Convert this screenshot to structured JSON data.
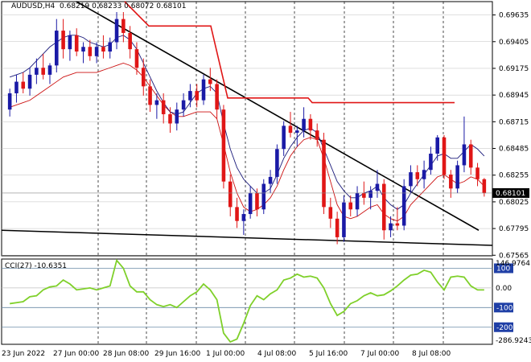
{
  "header": {
    "symbol_tf": "AUDUSD,H4",
    "ohlc": "0.68219 0.68233 0.68072 0.68101"
  },
  "price_axis": {
    "labels": [
      "0.69635",
      "0.69405",
      "0.69175",
      "0.68945",
      "0.68715",
      "0.68485",
      "0.68255",
      "0.68025",
      "0.67795",
      "0.67565"
    ],
    "current_price": "0.68101"
  },
  "time_axis": {
    "labels": [
      "23 Jun 2022",
      "27 Jun 00:00",
      "28 Jun 08:00",
      "29 Jun 16:00",
      "1 Jul 00:00",
      "4 Jul 08:00",
      "5 Jul 16:00",
      "7 Jul 00:00",
      "8 Jul 08:00"
    ]
  },
  "indicator": {
    "label": "CCI(27) -10.6351",
    "scale_labels": [
      "146.9764",
      "0.00",
      "-286.9243"
    ],
    "levels": [
      "100",
      "-100",
      "-200"
    ]
  },
  "colors": {
    "bull": "#1a1aa6",
    "bear": "#e01616",
    "ma_fast": "#1a1a7a",
    "ma_slow": "#cc1111",
    "resistance": "#e01616",
    "trendline": "#000000",
    "cci": "#7fd02a",
    "level_box": "#1f3fa6",
    "grid": "#bfbfbf"
  },
  "chart_data": {
    "type": "candlestick",
    "price_range": [
      0.6756,
      0.6975
    ],
    "candles": [
      [
        0.6882,
        0.69,
        0.6876,
        0.6896
      ],
      [
        0.6896,
        0.6912,
        0.6888,
        0.6906
      ],
      [
        0.6906,
        0.6914,
        0.6896,
        0.69
      ],
      [
        0.69,
        0.6918,
        0.6894,
        0.6912
      ],
      [
        0.6912,
        0.6926,
        0.6904,
        0.6918
      ],
      [
        0.6918,
        0.693,
        0.6908,
        0.6912
      ],
      [
        0.6912,
        0.6922,
        0.6904,
        0.692
      ],
      [
        0.692,
        0.696,
        0.6914,
        0.695
      ],
      [
        0.695,
        0.696,
        0.6926,
        0.6934
      ],
      [
        0.6934,
        0.695,
        0.6924,
        0.6946
      ],
      [
        0.6946,
        0.6952,
        0.6928,
        0.6932
      ],
      [
        0.6932,
        0.694,
        0.6922,
        0.6936
      ],
      [
        0.6936,
        0.6942,
        0.6924,
        0.6928
      ],
      [
        0.6928,
        0.694,
        0.6922,
        0.6936
      ],
      [
        0.6936,
        0.6946,
        0.6926,
        0.6932
      ],
      [
        0.6932,
        0.6944,
        0.6926,
        0.694
      ],
      [
        0.694,
        0.6966,
        0.6934,
        0.696
      ],
      [
        0.696,
        0.6966,
        0.694,
        0.6948
      ],
      [
        0.6948,
        0.6954,
        0.6926,
        0.6934
      ],
      [
        0.6934,
        0.694,
        0.6912,
        0.6918
      ],
      [
        0.6918,
        0.6926,
        0.6894,
        0.6902
      ],
      [
        0.6902,
        0.6908,
        0.688,
        0.6886
      ],
      [
        0.6886,
        0.6896,
        0.6874,
        0.689
      ],
      [
        0.689,
        0.6896,
        0.687,
        0.6878
      ],
      [
        0.6878,
        0.6884,
        0.6862,
        0.687
      ],
      [
        0.687,
        0.6888,
        0.6864,
        0.6882
      ],
      [
        0.6882,
        0.6896,
        0.6876,
        0.689
      ],
      [
        0.689,
        0.6904,
        0.6884,
        0.6898
      ],
      [
        0.6898,
        0.6904,
        0.6884,
        0.689
      ],
      [
        0.689,
        0.6912,
        0.6886,
        0.6908
      ],
      [
        0.6908,
        0.6918,
        0.6898,
        0.6904
      ],
      [
        0.6904,
        0.6908,
        0.6874,
        0.6882
      ],
      [
        0.6882,
        0.6886,
        0.6814,
        0.682
      ],
      [
        0.682,
        0.6826,
        0.679,
        0.6798
      ],
      [
        0.6798,
        0.6806,
        0.678,
        0.6786
      ],
      [
        0.6786,
        0.6796,
        0.6774,
        0.6792
      ],
      [
        0.6792,
        0.6816,
        0.6788,
        0.681
      ],
      [
        0.681,
        0.6814,
        0.679,
        0.6796
      ],
      [
        0.6796,
        0.6822,
        0.6792,
        0.6818
      ],
      [
        0.6818,
        0.683,
        0.681,
        0.6824
      ],
      [
        0.6824,
        0.6852,
        0.6818,
        0.6848
      ],
      [
        0.6848,
        0.6872,
        0.6842,
        0.6868
      ],
      [
        0.6868,
        0.688,
        0.6858,
        0.6862
      ],
      [
        0.6862,
        0.6868,
        0.685,
        0.6864
      ],
      [
        0.6864,
        0.6884,
        0.6858,
        0.6874
      ],
      [
        0.6874,
        0.6878,
        0.6856,
        0.6864
      ],
      [
        0.6864,
        0.687,
        0.685,
        0.6856
      ],
      [
        0.6856,
        0.6862,
        0.6792,
        0.6798
      ],
      [
        0.6798,
        0.6806,
        0.678,
        0.6788
      ],
      [
        0.6788,
        0.6794,
        0.6766,
        0.6772
      ],
      [
        0.6772,
        0.6808,
        0.6768,
        0.6802
      ],
      [
        0.6802,
        0.6808,
        0.679,
        0.6796
      ],
      [
        0.6796,
        0.6816,
        0.679,
        0.681
      ],
      [
        0.681,
        0.682,
        0.68,
        0.6806
      ],
      [
        0.6806,
        0.6816,
        0.6796,
        0.6812
      ],
      [
        0.6812,
        0.683,
        0.6806,
        0.6818
      ],
      [
        0.6818,
        0.6822,
        0.677,
        0.6778
      ],
      [
        0.6778,
        0.679,
        0.6772,
        0.6784
      ],
      [
        0.6784,
        0.6798,
        0.6778,
        0.6782
      ],
      [
        0.6782,
        0.6822,
        0.6778,
        0.6816
      ],
      [
        0.6816,
        0.6834,
        0.681,
        0.6828
      ],
      [
        0.6828,
        0.6834,
        0.6816,
        0.6822
      ],
      [
        0.6822,
        0.6838,
        0.6814,
        0.683
      ],
      [
        0.683,
        0.685,
        0.6826,
        0.6844
      ],
      [
        0.6844,
        0.686,
        0.6838,
        0.6858
      ],
      [
        0.6858,
        0.686,
        0.6822,
        0.6826
      ],
      [
        0.6826,
        0.683,
        0.6806,
        0.6814
      ],
      [
        0.6814,
        0.6838,
        0.681,
        0.6834
      ],
      [
        0.6834,
        0.6876,
        0.6828,
        0.6852
      ],
      [
        0.6852,
        0.6856,
        0.6826,
        0.6832
      ],
      [
        0.6832,
        0.6836,
        0.6816,
        0.6822
      ],
      [
        0.6822,
        0.6823,
        0.6807,
        0.681
      ]
    ],
    "ma_fast": [
      0.691,
      0.6912,
      0.6914,
      0.6918,
      0.6924,
      0.693,
      0.6936,
      0.694,
      0.6944,
      0.6946,
      0.6946,
      0.6944,
      0.694,
      0.6938,
      0.6936,
      0.6938,
      0.6944,
      0.6946,
      0.6942,
      0.6934,
      0.6922,
      0.691,
      0.6898,
      0.6888,
      0.688,
      0.6878,
      0.688,
      0.6888,
      0.6896,
      0.69,
      0.6902,
      0.6896,
      0.687,
      0.6848,
      0.6832,
      0.6822,
      0.6816,
      0.681,
      0.681,
      0.6814,
      0.6826,
      0.684,
      0.685,
      0.6858,
      0.6864,
      0.6866,
      0.6862,
      0.6848,
      0.6834,
      0.682,
      0.6812,
      0.6806,
      0.6806,
      0.681,
      0.6812,
      0.6816,
      0.6806,
      0.68,
      0.6796,
      0.68,
      0.681,
      0.6818,
      0.6826,
      0.6834,
      0.6842,
      0.6844,
      0.684,
      0.684,
      0.6846,
      0.6852,
      0.6848,
      0.6842
    ],
    "ma_slow": [
      0.6884,
      0.6886,
      0.6888,
      0.689,
      0.6894,
      0.6898,
      0.6902,
      0.6906,
      0.691,
      0.6912,
      0.6914,
      0.6914,
      0.6914,
      0.6914,
      0.6916,
      0.6918,
      0.692,
      0.6922,
      0.692,
      0.6916,
      0.691,
      0.6902,
      0.6894,
      0.6886,
      0.688,
      0.6876,
      0.6876,
      0.6878,
      0.688,
      0.688,
      0.688,
      0.6874,
      0.6852,
      0.6828,
      0.681,
      0.6798,
      0.6794,
      0.6796,
      0.68,
      0.6806,
      0.6816,
      0.683,
      0.6842,
      0.685,
      0.6856,
      0.6858,
      0.6856,
      0.684,
      0.682,
      0.68,
      0.679,
      0.6788,
      0.679,
      0.6794,
      0.6798,
      0.68,
      0.6792,
      0.6788,
      0.6786,
      0.679,
      0.68,
      0.6806,
      0.6812,
      0.6818,
      0.6824,
      0.6826,
      0.6822,
      0.6818,
      0.682,
      0.6824,
      0.6822,
      0.6816
    ],
    "cci": [
      -80,
      -75,
      -70,
      -45,
      -40,
      -10,
      5,
      10,
      40,
      20,
      -10,
      -5,
      0,
      -10,
      0,
      10,
      140,
      100,
      10,
      -20,
      -20,
      -60,
      -85,
      -95,
      -85,
      -100,
      -70,
      -40,
      -20,
      20,
      -10,
      -60,
      -230,
      -275,
      -260,
      -180,
      -90,
      -40,
      -60,
      -30,
      -10,
      40,
      50,
      70,
      55,
      60,
      50,
      0,
      -80,
      -140,
      -120,
      -80,
      -65,
      -40,
      -25,
      -40,
      -35,
      -15,
      10,
      40,
      65,
      70,
      90,
      80,
      30,
      -10,
      55,
      60,
      55,
      10,
      -10,
      -10
    ]
  }
}
